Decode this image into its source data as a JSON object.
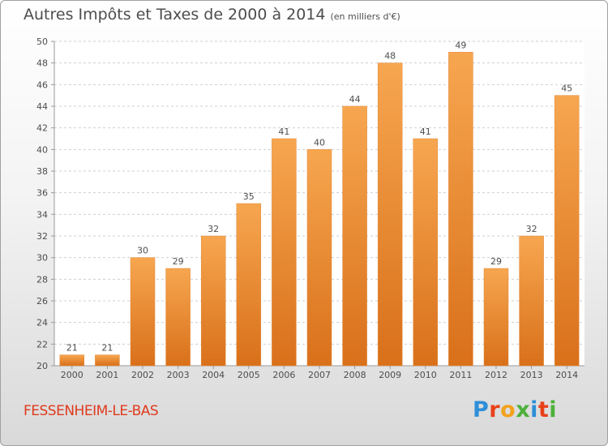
{
  "chart_data": {
    "type": "bar",
    "title": "Autres Impôts et Taxes de 2000 à 2014",
    "subtitle": "(en milliers d'€)",
    "categories": [
      "2000",
      "2001",
      "2002",
      "2003",
      "2004",
      "2005",
      "2006",
      "2007",
      "2008",
      "2009",
      "2010",
      "2011",
      "2012",
      "2013",
      "2014"
    ],
    "values": [
      21,
      21,
      30,
      29,
      32,
      35,
      41,
      40,
      44,
      48,
      41,
      49,
      29,
      32,
      45
    ],
    "ylim": [
      20,
      50
    ],
    "yticks": [
      20,
      22,
      24,
      26,
      28,
      30,
      32,
      34,
      36,
      38,
      40,
      42,
      44,
      46,
      48,
      50
    ],
    "grid": true,
    "bar_color": "#f28c28",
    "label_color": "#4d4d4d"
  },
  "commune": "FESSENHEIM-LE-BAS",
  "brand": "Proxiti"
}
